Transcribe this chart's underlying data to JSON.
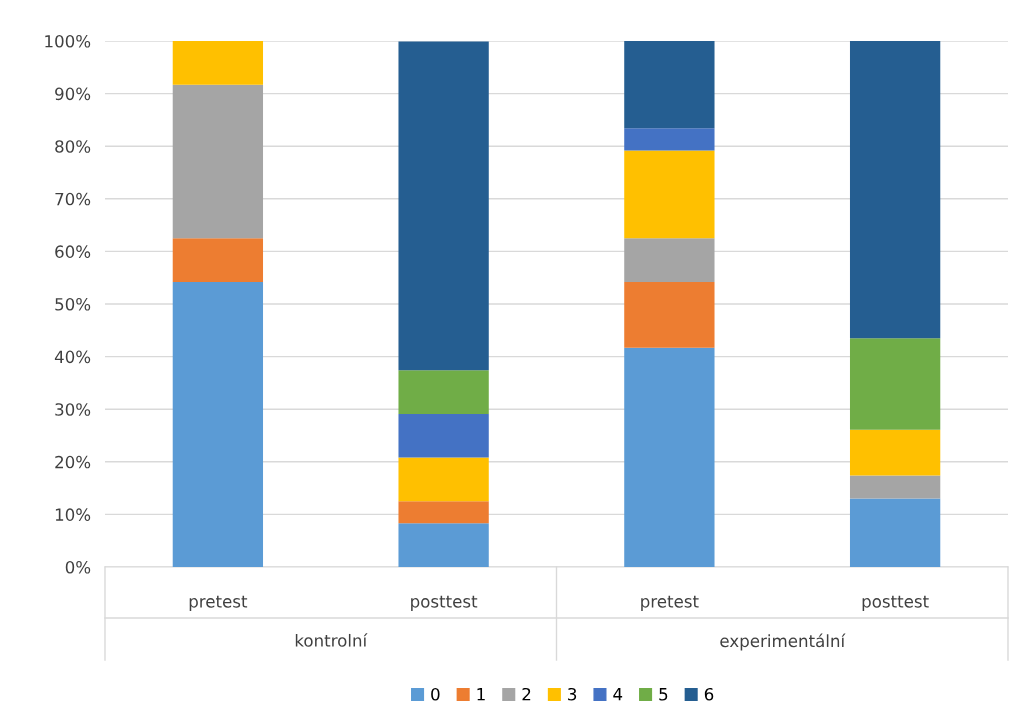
{
  "chart_data": {
    "type": "bar",
    "stacked": true,
    "categories": [
      "pretest",
      "posttest",
      "pretest",
      "posttest"
    ],
    "series": [
      {
        "name": "0",
        "color": "#5b9bd5",
        "values": [
          54.2,
          8.3,
          41.7,
          13.0
        ]
      },
      {
        "name": "1",
        "color": "#ed7d31",
        "values": [
          8.3,
          4.2,
          12.5,
          0
        ]
      },
      {
        "name": "2",
        "color": "#a5a5a5",
        "values": [
          29.2,
          0,
          8.3,
          4.4
        ]
      },
      {
        "name": "3",
        "color": "#ffc000",
        "values": [
          8.3,
          8.3,
          16.7,
          8.7
        ]
      },
      {
        "name": "4",
        "color": "#4472c4",
        "values": [
          0,
          8.3,
          4.2,
          0
        ]
      },
      {
        "name": "5",
        "color": "#70ad47",
        "values": [
          0,
          8.3,
          0,
          17.4
        ]
      },
      {
        "name": "6",
        "color": "#255e91",
        "values": [
          0,
          62.5,
          16.7,
          56.5
        ]
      }
    ],
    "annotations": [
      "kontrolní",
      "experimentální"
    ],
    "ylim": [
      0,
      100
    ],
    "yticks": [
      {
        "value": 0,
        "label": "0%"
      },
      {
        "value": 10,
        "label": "10%"
      },
      {
        "value": 20,
        "label": "20%"
      },
      {
        "value": 30,
        "label": "30%"
      },
      {
        "value": 40,
        "label": "40%"
      },
      {
        "value": 50,
        "label": "50%"
      },
      {
        "value": 60,
        "label": "60%"
      },
      {
        "value": 70,
        "label": "70%"
      },
      {
        "value": 80,
        "label": "80%"
      },
      {
        "value": 90,
        "label": "90%"
      },
      {
        "value": 100,
        "label": "100%"
      }
    ],
    "grid": "y",
    "legend": "bottom"
  }
}
